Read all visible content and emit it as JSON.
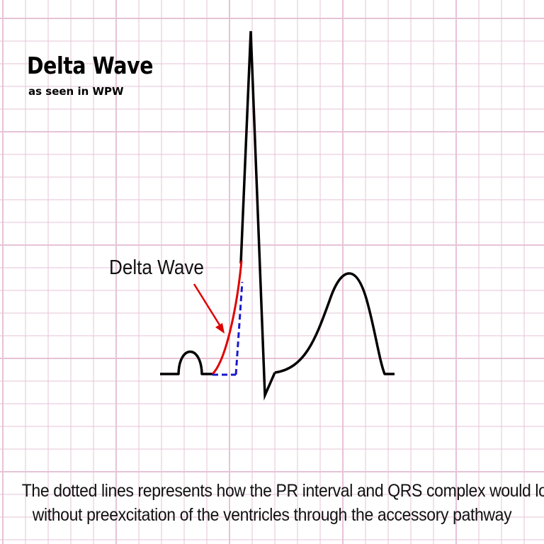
{
  "title": "Delta Wave",
  "subtitle": "as seen in WPW",
  "annotation_label": "Delta Wave",
  "caption": {
    "line1": "The dotted lines represents how the PR interval and QRS complex would look",
    "line2": "without preexcitation of the ventricles through the accessory pathway"
  },
  "colors": {
    "grid_line": "#e6c3d6",
    "trace": "#000000",
    "delta_wave": "#e00000",
    "dotted_line": "#1a1acc"
  }
}
